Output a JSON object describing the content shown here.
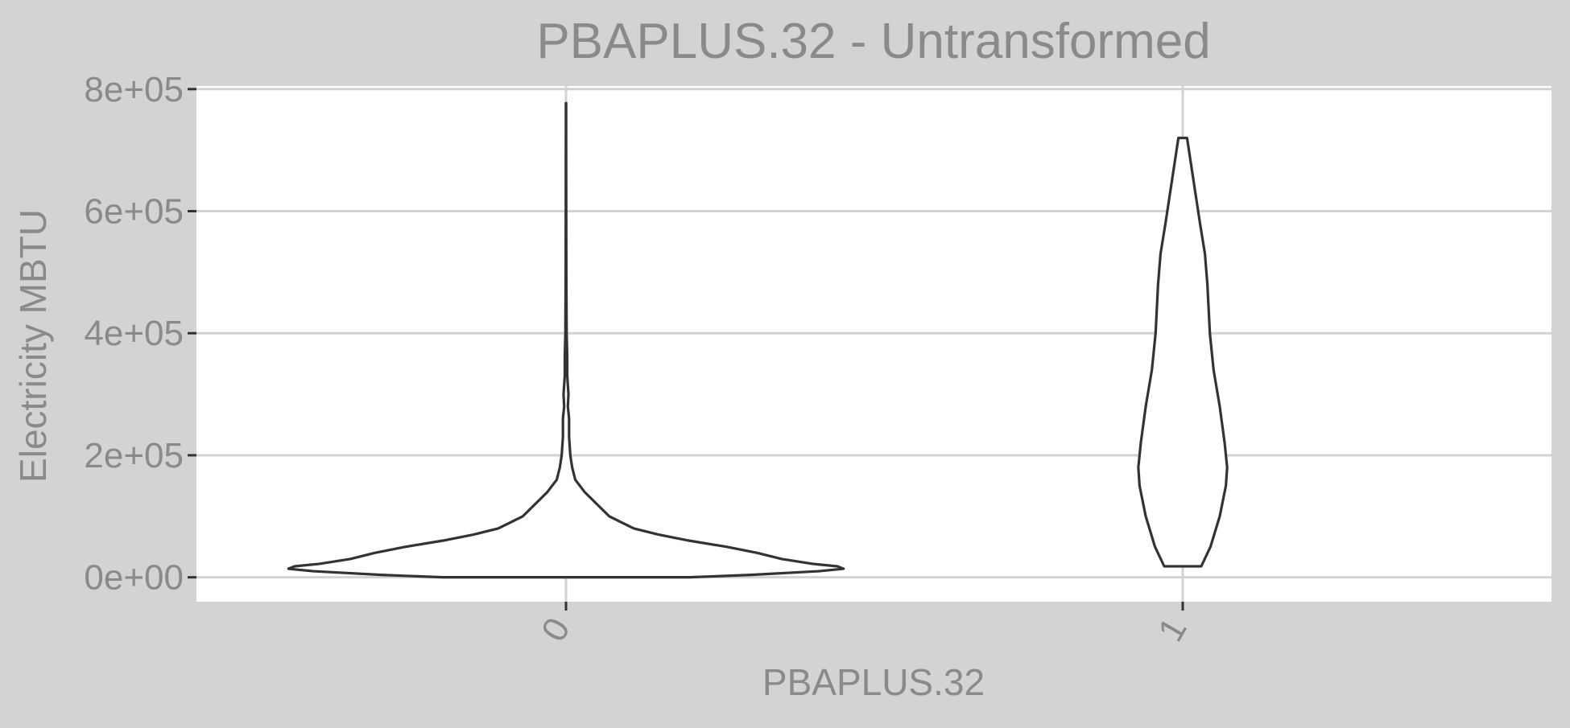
{
  "chart_data": {
    "type": "violin",
    "title": "PBAPLUS.32 - Untransformed",
    "xlabel": "PBAPLUS.32",
    "ylabel": "Electricity MBTU",
    "categories": [
      "0",
      "1"
    ],
    "y_ticks": [
      0,
      200000,
      400000,
      600000,
      800000
    ],
    "y_tick_labels": [
      "0e+00",
      "2e+05",
      "4e+05",
      "6e+05",
      "8e+05"
    ],
    "ylim": [
      -40000,
      805000
    ],
    "grid": true,
    "legend": "none",
    "background_color": "#d3d3d3",
    "panel_color": "#ffffff",
    "grid_color": "#d3d3d3",
    "violin_stroke_color": "#333333",
    "violins": [
      {
        "category": "0",
        "min": 0,
        "max": 777000,
        "profile": [
          {
            "y": 0,
            "half_width": 0.2
          },
          {
            "y": 4000,
            "half_width": 0.3
          },
          {
            "y": 10000,
            "half_width": 0.41
          },
          {
            "y": 14000,
            "half_width": 0.45
          },
          {
            "y": 18000,
            "half_width": 0.44
          },
          {
            "y": 22000,
            "half_width": 0.4
          },
          {
            "y": 30000,
            "half_width": 0.35
          },
          {
            "y": 40000,
            "half_width": 0.31
          },
          {
            "y": 50000,
            "half_width": 0.26
          },
          {
            "y": 60000,
            "half_width": 0.2
          },
          {
            "y": 70000,
            "half_width": 0.15
          },
          {
            "y": 80000,
            "half_width": 0.11
          },
          {
            "y": 90000,
            "half_width": 0.09
          },
          {
            "y": 100000,
            "half_width": 0.07
          },
          {
            "y": 120000,
            "half_width": 0.05
          },
          {
            "y": 140000,
            "half_width": 0.03
          },
          {
            "y": 160000,
            "half_width": 0.015
          },
          {
            "y": 180000,
            "half_width": 0.01
          },
          {
            "y": 200000,
            "half_width": 0.007
          },
          {
            "y": 230000,
            "half_width": 0.005
          },
          {
            "y": 260000,
            "half_width": 0.005
          },
          {
            "y": 280000,
            "half_width": 0.003
          },
          {
            "y": 300000,
            "half_width": 0.004
          },
          {
            "y": 330000,
            "half_width": 0.002
          },
          {
            "y": 360000,
            "half_width": 0.002
          },
          {
            "y": 400000,
            "half_width": 0.001
          },
          {
            "y": 500000,
            "half_width": 0.0005
          },
          {
            "y": 650000,
            "half_width": 0.0003
          },
          {
            "y": 777000,
            "half_width": 0.0002
          }
        ]
      },
      {
        "category": "1",
        "min": 18000,
        "max": 720000,
        "profile": [
          {
            "y": 18000,
            "half_width": 0.03
          },
          {
            "y": 50000,
            "half_width": 0.045
          },
          {
            "y": 100000,
            "half_width": 0.06
          },
          {
            "y": 150000,
            "half_width": 0.07
          },
          {
            "y": 180000,
            "half_width": 0.072
          },
          {
            "y": 220000,
            "half_width": 0.068
          },
          {
            "y": 280000,
            "half_width": 0.06
          },
          {
            "y": 340000,
            "half_width": 0.05
          },
          {
            "y": 400000,
            "half_width": 0.044
          },
          {
            "y": 480000,
            "half_width": 0.04
          },
          {
            "y": 530000,
            "half_width": 0.036
          },
          {
            "y": 580000,
            "half_width": 0.028
          },
          {
            "y": 620000,
            "half_width": 0.022
          },
          {
            "y": 660000,
            "half_width": 0.016
          },
          {
            "y": 700000,
            "half_width": 0.01
          },
          {
            "y": 720000,
            "half_width": 0.007
          }
        ]
      }
    ]
  }
}
